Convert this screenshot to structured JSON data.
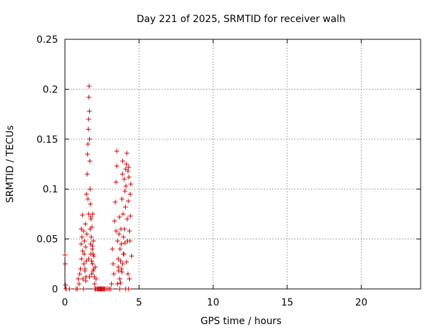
{
  "chart_data": {
    "type": "scatter",
    "title": "Day 221 of 2025, SRMTID for receiver walh",
    "xlabel": "GPS time / hours",
    "ylabel": "SRMTID / TECUs",
    "xlim": [
      0,
      24
    ],
    "ylim": [
      0,
      0.25
    ],
    "xticks": [
      0,
      5,
      10,
      15,
      20
    ],
    "xtick_labels": [
      "0",
      "5",
      "10",
      "15",
      "20"
    ],
    "yticks": [
      0,
      0.05,
      0.1,
      0.15,
      0.2,
      0.25
    ],
    "ytick_labels": [
      "0",
      "0.05",
      "0.1",
      "0.15",
      "0.2",
      "0.25"
    ],
    "grid": true,
    "marker": "+",
    "color": "#cc0000",
    "series": [
      {
        "x": [
          0.0,
          0.02,
          0.04,
          0.06,
          0.08,
          0.3,
          0.75,
          0.85,
          0.9,
          0.95,
          1.0,
          1.05,
          1.1,
          1.1,
          1.12,
          1.15,
          1.18,
          1.2,
          1.22,
          1.25,
          1.28,
          1.3,
          1.32,
          1.35,
          1.38,
          1.4,
          1.42,
          1.45,
          1.48,
          1.5,
          1.52,
          1.55,
          1.55,
          1.58,
          1.6,
          1.6,
          1.62,
          1.63,
          1.65,
          1.66,
          1.68,
          1.7,
          1.7,
          1.72,
          1.74,
          1.75,
          1.76,
          1.78,
          1.8,
          1.8,
          1.82,
          1.84,
          1.86,
          1.88,
          1.9,
          1.92,
          1.95,
          1.98,
          2.0,
          2.02,
          2.05,
          2.08,
          2.1,
          2.15,
          2.2,
          2.25,
          2.3,
          2.35,
          2.4,
          2.45,
          2.5,
          2.55,
          2.6,
          2.65,
          2.7,
          2.8,
          2.9,
          3.0,
          3.1,
          3.15,
          3.2,
          3.25,
          3.3,
          3.35,
          3.4,
          3.45,
          3.5,
          3.5,
          3.55,
          3.6,
          3.62,
          3.65,
          3.68,
          3.7,
          3.72,
          3.75,
          3.78,
          3.8,
          3.82,
          3.85,
          3.88,
          3.9,
          3.92,
          3.95,
          3.98,
          4.0,
          4.02,
          4.05,
          4.08,
          4.1,
          4.12,
          4.15,
          4.18,
          4.2,
          4.22,
          4.25,
          4.28,
          4.3,
          4.32,
          4.35,
          4.38,
          4.4,
          4.42,
          4.45,
          4.5,
          1.35,
          1.45,
          1.6,
          1.75,
          1.85,
          1.95,
          3.45,
          3.6,
          3.75,
          3.85,
          3.95,
          4.05,
          4.15,
          4.25,
          4.35,
          1.25,
          1.4,
          1.65,
          1.9,
          3.55,
          3.7,
          3.9,
          4.1,
          4.3
        ],
        "y": [
          0.034,
          0.025,
          0.004,
          0.0,
          0.0,
          0.0,
          0.0,
          0.0,
          0.01,
          0.005,
          0.015,
          0.02,
          0.045,
          0.06,
          0.03,
          0.052,
          0.074,
          0.038,
          0.01,
          0.058,
          0.025,
          0.035,
          0.048,
          0.018,
          0.065,
          0.042,
          0.012,
          0.028,
          0.055,
          0.115,
          0.135,
          0.145,
          0.09,
          0.16,
          0.17,
          0.075,
          0.192,
          0.203,
          0.178,
          0.15,
          0.128,
          0.1,
          0.06,
          0.085,
          0.045,
          0.035,
          0.07,
          0.052,
          0.028,
          0.015,
          0.062,
          0.04,
          0.025,
          0.075,
          0.035,
          0.048,
          0.02,
          0.012,
          0.005,
          0.0,
          0.022,
          0.0,
          0.01,
          0.0,
          0.0,
          0.0,
          0.0,
          0.0,
          0.0,
          0.0,
          0.0,
          0.0,
          0.0,
          0.0,
          0.0,
          0.0,
          0.0,
          0.0,
          0.0,
          0.005,
          0.04,
          0.025,
          0.015,
          0.068,
          0.087,
          0.107,
          0.123,
          0.138,
          0.048,
          0.03,
          0.018,
          0.055,
          0.072,
          0.01,
          0.04,
          0.028,
          0.06,
          0.045,
          0.02,
          0.09,
          0.115,
          0.128,
          0.075,
          0.052,
          0.035,
          0.11,
          0.06,
          0.098,
          0.082,
          0.12,
          0.103,
          0.125,
          0.136,
          0.07,
          0.048,
          0.118,
          0.088,
          0.122,
          0.112,
          0.058,
          0.048,
          0.095,
          0.073,
          0.105,
          0.033,
          0.02,
          0.095,
          0.03,
          0.072,
          0.043,
          0.033,
          0.058,
          0.022,
          0.006,
          0.017,
          0.035,
          0.046,
          0.027,
          0.015,
          0.01,
          0.0,
          0.008,
          0.012,
          0.018,
          0.005,
          0.0,
          0.025,
          0.0,
          0.0
        ]
      }
    ]
  }
}
